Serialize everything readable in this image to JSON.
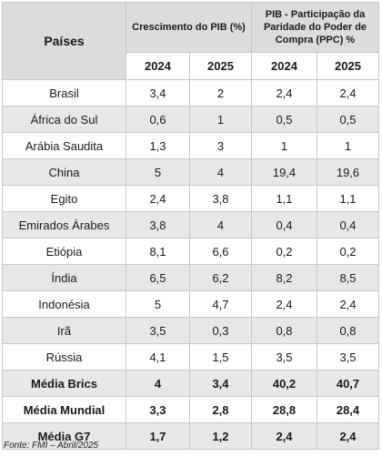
{
  "headers": {
    "country": "Países",
    "growth": "Crescimento do PIB (%)",
    "share": "PIB - Participação da Paridade do Poder de Compra (PPC) %",
    "years": [
      "2024",
      "2025",
      "2024",
      "2025"
    ]
  },
  "rows": [
    {
      "country": "Brasil",
      "g2024": "3,4",
      "g2025": "2",
      "p2024": "2,4",
      "p2025": "2,4"
    },
    {
      "country": "África do Sul",
      "g2024": "0,6",
      "g2025": "1",
      "p2024": "0,5",
      "p2025": "0,5"
    },
    {
      "country": "Arábia Saudita",
      "g2024": "1,3",
      "g2025": "3",
      "p2024": "1",
      "p2025": "1"
    },
    {
      "country": "China",
      "g2024": "5",
      "g2025": "4",
      "p2024": "19,4",
      "p2025": "19,6"
    },
    {
      "country": "Egito",
      "g2024": "2,4",
      "g2025": "3,8",
      "p2024": "1,1",
      "p2025": "1,1"
    },
    {
      "country": "Emirados Árabes",
      "g2024": "3,8",
      "g2025": "4",
      "p2024": "0,4",
      "p2025": "0,4"
    },
    {
      "country": "Etiópia",
      "g2024": "8,1",
      "g2025": "6,6",
      "p2024": "0,2",
      "p2025": "0,2"
    },
    {
      "country": "Índia",
      "g2024": "6,5",
      "g2025": "6,2",
      "p2024": "8,2",
      "p2025": "8,5"
    },
    {
      "country": "Indonésia",
      "g2024": "5",
      "g2025": "4,7",
      "p2024": "2,4",
      "p2025": "2,4"
    },
    {
      "country": "Irã",
      "g2024": "3,5",
      "g2025": "0,3",
      "p2024": "0,8",
      "p2025": "0,8"
    },
    {
      "country": "Rússia",
      "g2024": "4,1",
      "g2025": "1,5",
      "p2024": "3,5",
      "p2025": "3,5"
    },
    {
      "country": "Média Brics",
      "g2024": "4",
      "g2025": "3,4",
      "p2024": "40,2",
      "p2025": "40,7"
    },
    {
      "country": "Média Mundial",
      "g2024": "3,3",
      "g2025": "2,8",
      "p2024": "28,8",
      "p2025": "28,4"
    },
    {
      "country": "Média G7",
      "g2024": "1,7",
      "g2025": "1,2",
      "p2024": "2,4",
      "p2025": "2,4"
    }
  ],
  "source": "Fonte: FMI – Abril/2025"
}
